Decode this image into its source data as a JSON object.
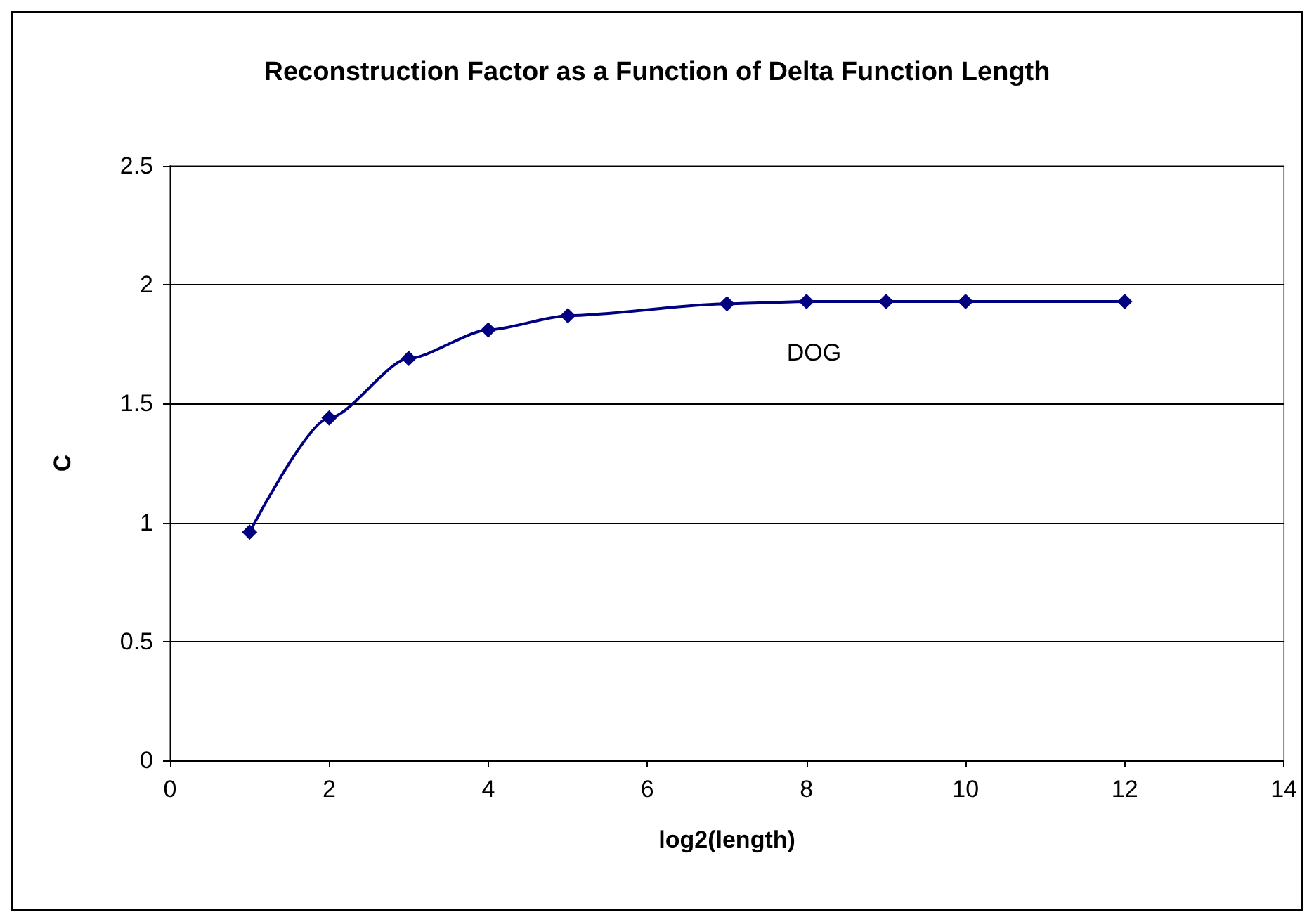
{
  "chart_data": {
    "type": "line",
    "title": "Reconstruction Factor as a Function of Delta Function Length",
    "xlabel": "log2(length)",
    "ylabel": "C",
    "x": [
      1,
      2,
      3,
      4,
      5,
      7,
      8,
      9,
      10,
      12
    ],
    "series": [
      {
        "name": "DOG",
        "color": "#000080",
        "values": [
          0.96,
          1.44,
          1.69,
          1.81,
          1.87,
          1.92,
          1.93,
          1.93,
          1.93,
          1.93
        ]
      }
    ],
    "xlim": [
      0,
      14
    ],
    "xticks": [
      0,
      2,
      4,
      6,
      8,
      10,
      12,
      14
    ],
    "ylim": [
      0,
      2.5
    ],
    "yticks": [
      0,
      0.5,
      1,
      1.5,
      2,
      2.5
    ],
    "grid": "y",
    "legend": false,
    "marker": "diamond",
    "line_style": "solid"
  }
}
